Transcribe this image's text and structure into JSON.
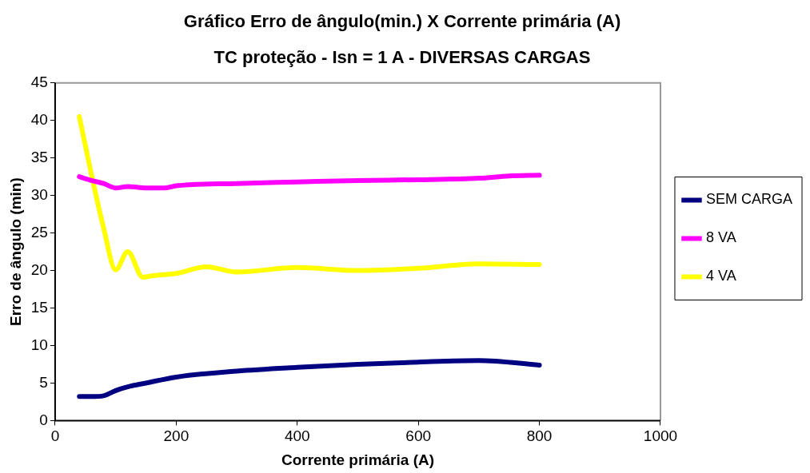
{
  "chart_data": {
    "type": "line",
    "title": "Gráfico Erro de ângulo(min.) X Corrente primária (A)",
    "subtitle": "TC proteção - Isn = 1 A - DIVERSAS CARGAS",
    "xlabel": "Corrente primária (A)",
    "ylabel": "Erro de ângulo (min)",
    "xlim": [
      0,
      1000
    ],
    "xticks": [
      0,
      200,
      400,
      600,
      800,
      1000
    ],
    "ylim": [
      0,
      45
    ],
    "yticks": [
      0,
      5,
      10,
      15,
      20,
      25,
      30,
      35,
      40,
      45
    ],
    "grid": false,
    "legend": "right",
    "marker": "none",
    "line_style": "solid",
    "series": [
      {
        "name": "SEM CARGA",
        "color": "#000080",
        "x": [
          40,
          60,
          80,
          100,
          120,
          150,
          200,
          300,
          400,
          500,
          600,
          700,
          800
        ],
        "values": [
          3.2,
          3.2,
          3.3,
          4.0,
          4.5,
          5.0,
          5.8,
          6.6,
          7.1,
          7.5,
          7.8,
          8.0,
          7.4
        ]
      },
      {
        "name": "8 VA",
        "color": "#ff00ff",
        "x": [
          40,
          60,
          80,
          100,
          120,
          150,
          180,
          200,
          300,
          400,
          500,
          600,
          700,
          750,
          800
        ],
        "values": [
          32.5,
          32.0,
          31.6,
          31.0,
          31.2,
          31.0,
          31.0,
          31.3,
          31.6,
          31.8,
          32.0,
          32.1,
          32.3,
          32.6,
          32.7
        ]
      },
      {
        "name": "4 VA",
        "color": "#ffff00",
        "x": [
          40,
          60,
          80,
          100,
          120,
          145,
          160,
          200,
          250,
          300,
          400,
          500,
          600,
          700,
          800
        ],
        "values": [
          40.5,
          32.8,
          25.7,
          20.1,
          22.5,
          19.1,
          19.3,
          19.6,
          20.5,
          19.8,
          20.4,
          20.0,
          20.3,
          20.9,
          20.8
        ]
      }
    ]
  }
}
